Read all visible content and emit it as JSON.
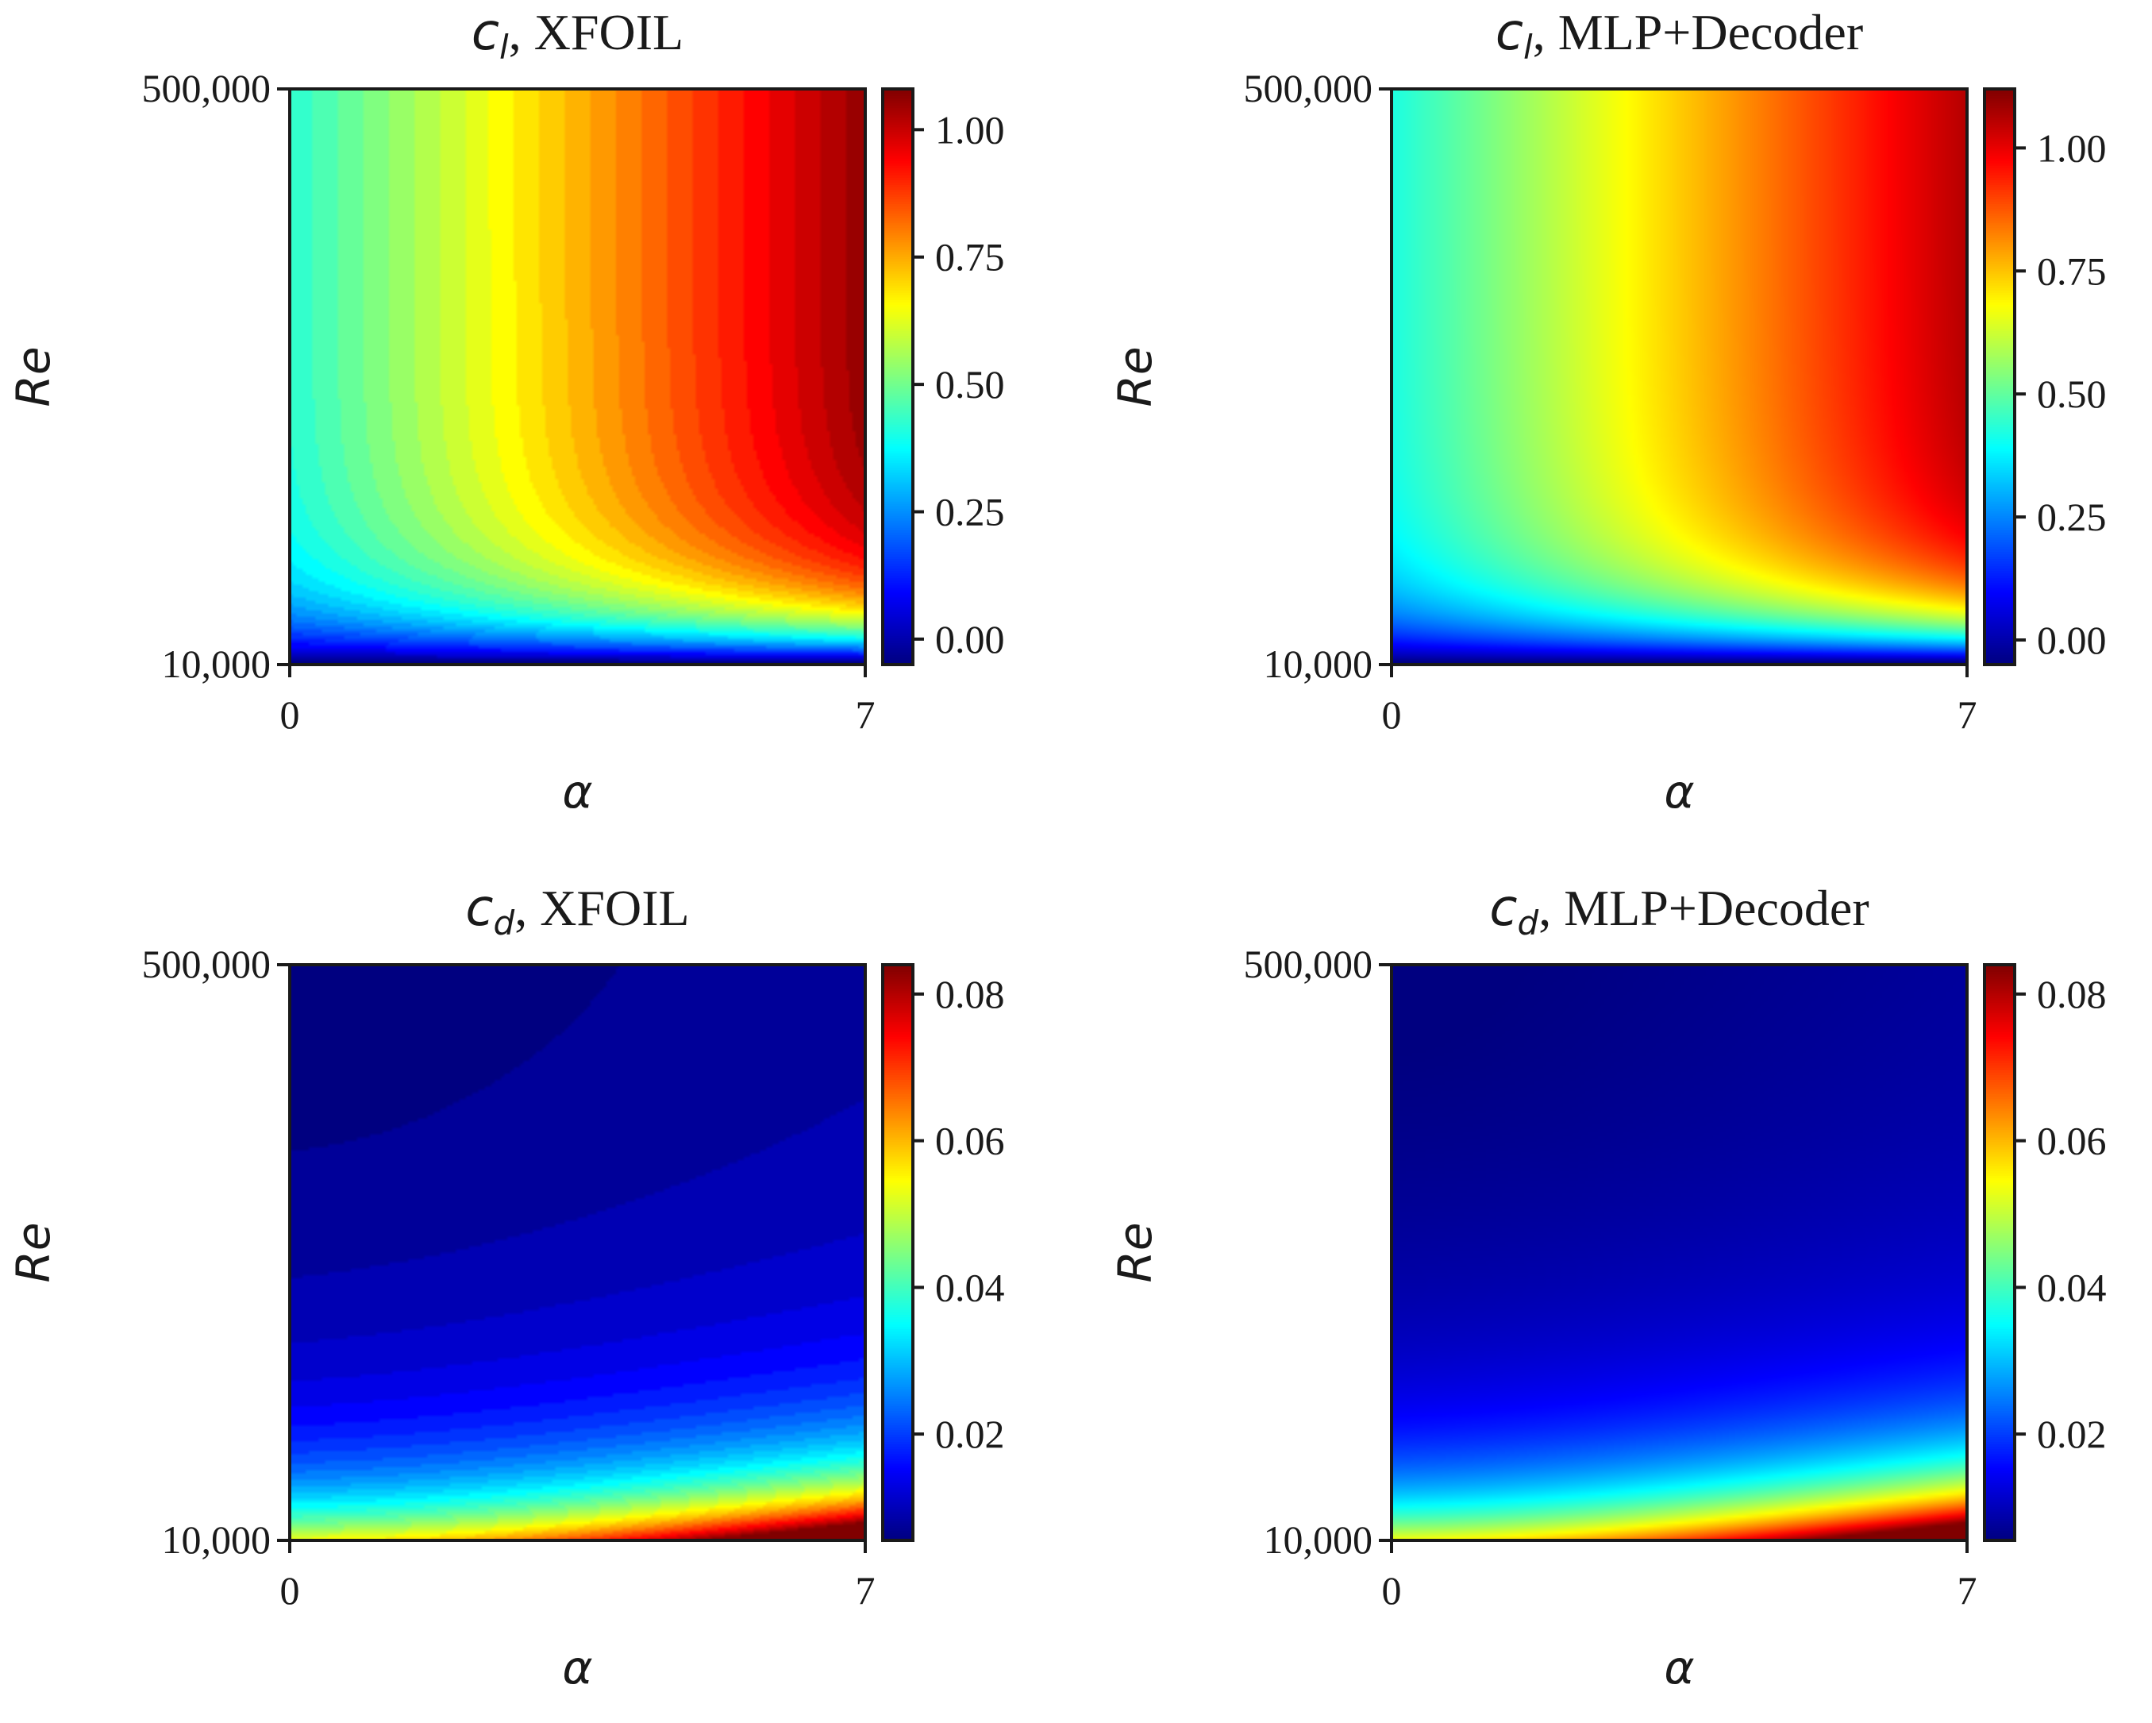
{
  "chart_data": [
    {
      "type": "heatmap",
      "title_symbol": "c",
      "title_sub": "l",
      "title_rest": ", XFOIL",
      "xlabel": "α",
      "ylabel": "Re",
      "x_ticks": [
        "0",
        "7"
      ],
      "y_ticks": [
        "500,000",
        "10,000"
      ],
      "xlim": [
        0,
        7
      ],
      "ylim": [
        10000,
        500000
      ],
      "colorbar_ticks": [
        "0.00",
        "0.25",
        "0.50",
        "0.75",
        "1.00"
      ],
      "colorbar_values": [
        0.0,
        0.25,
        0.5,
        0.75,
        1.0
      ],
      "vmin": -0.05,
      "vmax": 1.08,
      "field": "cl",
      "levels": 40
    },
    {
      "type": "heatmap",
      "title_symbol": "c",
      "title_sub": "l",
      "title_rest": ", MLP+Decoder",
      "xlabel": "α",
      "ylabel": "Re",
      "x_ticks": [
        "0",
        "7"
      ],
      "y_ticks": [
        "500,000",
        "10,000"
      ],
      "xlim": [
        0,
        7
      ],
      "ylim": [
        10000,
        500000
      ],
      "colorbar_ticks": [
        "0.00",
        "0.25",
        "0.50",
        "0.75",
        "1.00"
      ],
      "colorbar_values": [
        0.0,
        0.25,
        0.5,
        0.75,
        1.0
      ],
      "vmin": -0.05,
      "vmax": 1.12,
      "field": "cl",
      "levels": 0
    },
    {
      "type": "heatmap",
      "title_symbol": "c",
      "title_sub": "d",
      "title_rest": ", XFOIL",
      "xlabel": "α",
      "ylabel": "Re",
      "x_ticks": [
        "0",
        "7"
      ],
      "y_ticks": [
        "500,000",
        "10,000"
      ],
      "xlim": [
        0,
        7
      ],
      "ylim": [
        10000,
        500000
      ],
      "colorbar_ticks": [
        "0.02",
        "0.04",
        "0.06",
        "0.08"
      ],
      "colorbar_values": [
        0.02,
        0.04,
        0.06,
        0.08
      ],
      "vmin": 0.0055,
      "vmax": 0.084,
      "field": "cd",
      "levels": 40
    },
    {
      "type": "heatmap",
      "title_symbol": "c",
      "title_sub": "d",
      "title_rest": ", MLP+Decoder",
      "xlabel": "α",
      "ylabel": "Re",
      "x_ticks": [
        "0",
        "7"
      ],
      "y_ticks": [
        "500,000",
        "10,000"
      ],
      "xlim": [
        0,
        7
      ],
      "ylim": [
        10000,
        500000
      ],
      "colorbar_ticks": [
        "0.02",
        "0.04",
        "0.06",
        "0.08"
      ],
      "colorbar_values": [
        0.02,
        0.04,
        0.06,
        0.08
      ],
      "vmin": 0.0055,
      "vmax": 0.084,
      "field": "cd",
      "levels": 0
    }
  ]
}
